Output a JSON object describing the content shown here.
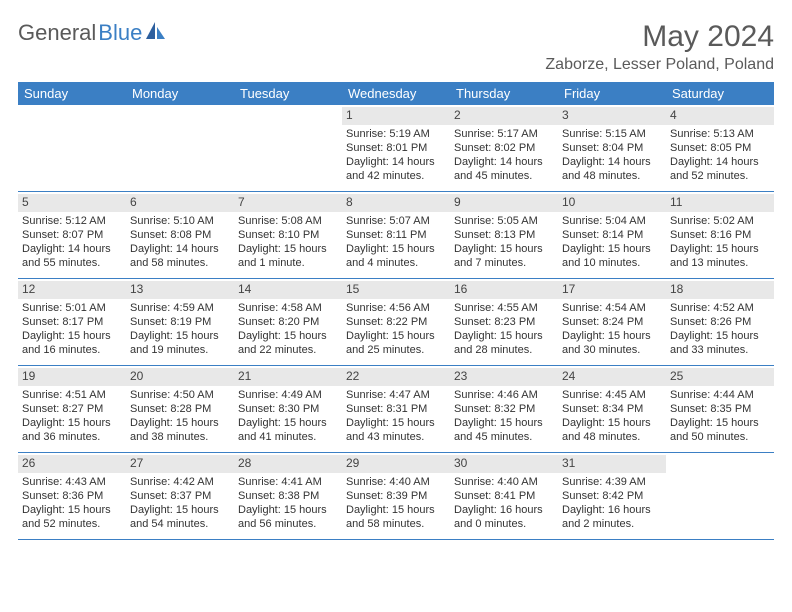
{
  "logo": {
    "word1": "General",
    "word2": "Blue"
  },
  "title": "May 2024",
  "location": "Zaborze, Lesser Poland, Poland",
  "colors": {
    "header_bg": "#3b7fc4",
    "header_text": "#ffffff",
    "daynum_bg": "#e8e8e8",
    "text": "#333333",
    "title_text": "#5a5a5a"
  },
  "daynames": [
    "Sunday",
    "Monday",
    "Tuesday",
    "Wednesday",
    "Thursday",
    "Friday",
    "Saturday"
  ],
  "weeks": [
    [
      null,
      null,
      null,
      {
        "n": "1",
        "sr": "Sunrise: 5:19 AM",
        "ss": "Sunset: 8:01 PM",
        "dl1": "Daylight: 14 hours",
        "dl2": "and 42 minutes."
      },
      {
        "n": "2",
        "sr": "Sunrise: 5:17 AM",
        "ss": "Sunset: 8:02 PM",
        "dl1": "Daylight: 14 hours",
        "dl2": "and 45 minutes."
      },
      {
        "n": "3",
        "sr": "Sunrise: 5:15 AM",
        "ss": "Sunset: 8:04 PM",
        "dl1": "Daylight: 14 hours",
        "dl2": "and 48 minutes."
      },
      {
        "n": "4",
        "sr": "Sunrise: 5:13 AM",
        "ss": "Sunset: 8:05 PM",
        "dl1": "Daylight: 14 hours",
        "dl2": "and 52 minutes."
      }
    ],
    [
      {
        "n": "5",
        "sr": "Sunrise: 5:12 AM",
        "ss": "Sunset: 8:07 PM",
        "dl1": "Daylight: 14 hours",
        "dl2": "and 55 minutes."
      },
      {
        "n": "6",
        "sr": "Sunrise: 5:10 AM",
        "ss": "Sunset: 8:08 PM",
        "dl1": "Daylight: 14 hours",
        "dl2": "and 58 minutes."
      },
      {
        "n": "7",
        "sr": "Sunrise: 5:08 AM",
        "ss": "Sunset: 8:10 PM",
        "dl1": "Daylight: 15 hours",
        "dl2": "and 1 minute."
      },
      {
        "n": "8",
        "sr": "Sunrise: 5:07 AM",
        "ss": "Sunset: 8:11 PM",
        "dl1": "Daylight: 15 hours",
        "dl2": "and 4 minutes."
      },
      {
        "n": "9",
        "sr": "Sunrise: 5:05 AM",
        "ss": "Sunset: 8:13 PM",
        "dl1": "Daylight: 15 hours",
        "dl2": "and 7 minutes."
      },
      {
        "n": "10",
        "sr": "Sunrise: 5:04 AM",
        "ss": "Sunset: 8:14 PM",
        "dl1": "Daylight: 15 hours",
        "dl2": "and 10 minutes."
      },
      {
        "n": "11",
        "sr": "Sunrise: 5:02 AM",
        "ss": "Sunset: 8:16 PM",
        "dl1": "Daylight: 15 hours",
        "dl2": "and 13 minutes."
      }
    ],
    [
      {
        "n": "12",
        "sr": "Sunrise: 5:01 AM",
        "ss": "Sunset: 8:17 PM",
        "dl1": "Daylight: 15 hours",
        "dl2": "and 16 minutes."
      },
      {
        "n": "13",
        "sr": "Sunrise: 4:59 AM",
        "ss": "Sunset: 8:19 PM",
        "dl1": "Daylight: 15 hours",
        "dl2": "and 19 minutes."
      },
      {
        "n": "14",
        "sr": "Sunrise: 4:58 AM",
        "ss": "Sunset: 8:20 PM",
        "dl1": "Daylight: 15 hours",
        "dl2": "and 22 minutes."
      },
      {
        "n": "15",
        "sr": "Sunrise: 4:56 AM",
        "ss": "Sunset: 8:22 PM",
        "dl1": "Daylight: 15 hours",
        "dl2": "and 25 minutes."
      },
      {
        "n": "16",
        "sr": "Sunrise: 4:55 AM",
        "ss": "Sunset: 8:23 PM",
        "dl1": "Daylight: 15 hours",
        "dl2": "and 28 minutes."
      },
      {
        "n": "17",
        "sr": "Sunrise: 4:54 AM",
        "ss": "Sunset: 8:24 PM",
        "dl1": "Daylight: 15 hours",
        "dl2": "and 30 minutes."
      },
      {
        "n": "18",
        "sr": "Sunrise: 4:52 AM",
        "ss": "Sunset: 8:26 PM",
        "dl1": "Daylight: 15 hours",
        "dl2": "and 33 minutes."
      }
    ],
    [
      {
        "n": "19",
        "sr": "Sunrise: 4:51 AM",
        "ss": "Sunset: 8:27 PM",
        "dl1": "Daylight: 15 hours",
        "dl2": "and 36 minutes."
      },
      {
        "n": "20",
        "sr": "Sunrise: 4:50 AM",
        "ss": "Sunset: 8:28 PM",
        "dl1": "Daylight: 15 hours",
        "dl2": "and 38 minutes."
      },
      {
        "n": "21",
        "sr": "Sunrise: 4:49 AM",
        "ss": "Sunset: 8:30 PM",
        "dl1": "Daylight: 15 hours",
        "dl2": "and 41 minutes."
      },
      {
        "n": "22",
        "sr": "Sunrise: 4:47 AM",
        "ss": "Sunset: 8:31 PM",
        "dl1": "Daylight: 15 hours",
        "dl2": "and 43 minutes."
      },
      {
        "n": "23",
        "sr": "Sunrise: 4:46 AM",
        "ss": "Sunset: 8:32 PM",
        "dl1": "Daylight: 15 hours",
        "dl2": "and 45 minutes."
      },
      {
        "n": "24",
        "sr": "Sunrise: 4:45 AM",
        "ss": "Sunset: 8:34 PM",
        "dl1": "Daylight: 15 hours",
        "dl2": "and 48 minutes."
      },
      {
        "n": "25",
        "sr": "Sunrise: 4:44 AM",
        "ss": "Sunset: 8:35 PM",
        "dl1": "Daylight: 15 hours",
        "dl2": "and 50 minutes."
      }
    ],
    [
      {
        "n": "26",
        "sr": "Sunrise: 4:43 AM",
        "ss": "Sunset: 8:36 PM",
        "dl1": "Daylight: 15 hours",
        "dl2": "and 52 minutes."
      },
      {
        "n": "27",
        "sr": "Sunrise: 4:42 AM",
        "ss": "Sunset: 8:37 PM",
        "dl1": "Daylight: 15 hours",
        "dl2": "and 54 minutes."
      },
      {
        "n": "28",
        "sr": "Sunrise: 4:41 AM",
        "ss": "Sunset: 8:38 PM",
        "dl1": "Daylight: 15 hours",
        "dl2": "and 56 minutes."
      },
      {
        "n": "29",
        "sr": "Sunrise: 4:40 AM",
        "ss": "Sunset: 8:39 PM",
        "dl1": "Daylight: 15 hours",
        "dl2": "and 58 minutes."
      },
      {
        "n": "30",
        "sr": "Sunrise: 4:40 AM",
        "ss": "Sunset: 8:41 PM",
        "dl1": "Daylight: 16 hours",
        "dl2": "and 0 minutes."
      },
      {
        "n": "31",
        "sr": "Sunrise: 4:39 AM",
        "ss": "Sunset: 8:42 PM",
        "dl1": "Daylight: 16 hours",
        "dl2": "and 2 minutes."
      },
      null
    ]
  ]
}
